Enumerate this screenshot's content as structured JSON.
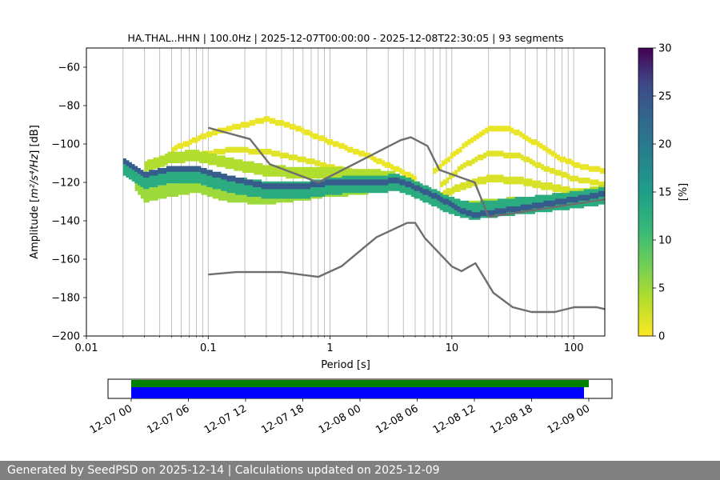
{
  "chart_data": [
    {
      "type": "heatmap",
      "title": "HA.THAL..HHN | 100.0Hz | 2025-12-07T00:00:00 - 2025-12-08T22:30:05 | 93 segments",
      "xlabel": "Period [s]",
      "ylabel_main": "Amplitude [",
      "ylabel_math": "m²/s⁴/Hz",
      "ylabel_end": "] [dB]",
      "xscale": "log",
      "xlim": [
        0.01,
        180
      ],
      "ylim": [
        -200,
        -50
      ],
      "x_ticks": [
        {
          "value": 0.01,
          "label": "0.01"
        },
        {
          "value": 0.1,
          "label": "0.1"
        },
        {
          "value": 1,
          "label": "1"
        },
        {
          "value": 10,
          "label": "10"
        },
        {
          "value": 100,
          "label": "100"
        }
      ],
      "y_ticks": [
        {
          "value": -60,
          "label": "−60"
        },
        {
          "value": -80,
          "label": "−80"
        },
        {
          "value": -100,
          "label": "−100"
        },
        {
          "value": -120,
          "label": "−120"
        },
        {
          "value": -140,
          "label": "−140"
        },
        {
          "value": -160,
          "label": "−160"
        },
        {
          "value": -180,
          "label": "−180"
        },
        {
          "value": -200,
          "label": "−200"
        }
      ],
      "grid": "x-major-and-minor",
      "colorbar": {
        "label": "[%]",
        "range": [
          0,
          30
        ],
        "ticks": [
          {
            "value": 0,
            "label": "0"
          },
          {
            "value": 5,
            "label": "5"
          },
          {
            "value": 10,
            "label": "10"
          },
          {
            "value": 15,
            "label": "15"
          },
          {
            "value": 20,
            "label": "20"
          },
          {
            "value": 25,
            "label": "25"
          },
          {
            "value": 30,
            "label": "30"
          }
        ],
        "colormap": "viridis_r"
      },
      "bands": [
        {
          "name": "mode",
          "pct": 24,
          "width_db": 3,
          "points": [
            [
              0.02,
              -108
            ],
            [
              0.03,
              -116
            ],
            [
              0.05,
              -113
            ],
            [
              0.08,
              -113
            ],
            [
              0.15,
              -118
            ],
            [
              0.3,
              -122
            ],
            [
              0.6,
              -122
            ],
            [
              1,
              -120
            ],
            [
              1.5,
              -120
            ],
            [
              2.5,
              -120
            ],
            [
              3.5,
              -119
            ],
            [
              4.5,
              -121
            ],
            [
              6,
              -125
            ],
            [
              9,
              -130
            ],
            [
              12,
              -135
            ],
            [
              15,
              -137
            ],
            [
              20,
              -136
            ],
            [
              40,
              -133
            ],
            [
              80,
              -130
            ],
            [
              180,
              -126
            ]
          ]
        },
        {
          "name": "core-band",
          "pct": 13,
          "width_db": 9,
          "points": [
            [
              0.02,
              -112
            ],
            [
              0.03,
              -119
            ],
            [
              0.05,
              -116
            ],
            [
              0.08,
              -116
            ],
            [
              0.15,
              -121
            ],
            [
              0.3,
              -124
            ],
            [
              0.6,
              -124
            ],
            [
              1,
              -122
            ],
            [
              1.5,
              -121
            ],
            [
              2.5,
              -121
            ],
            [
              3.5,
              -120
            ],
            [
              4.5,
              -122
            ],
            [
              6,
              -126
            ],
            [
              9,
              -131
            ],
            [
              12,
              -134
            ],
            [
              15,
              -135
            ],
            [
              20,
              -134
            ],
            [
              40,
              -132
            ],
            [
              80,
              -130
            ],
            [
              180,
              -127
            ]
          ]
        },
        {
          "name": "lower-spread",
          "pct": 5,
          "width_db": 7,
          "points": [
            [
              0.025,
              -120
            ],
            [
              0.03,
              -127
            ],
            [
              0.05,
              -124
            ],
            [
              0.08,
              -122
            ],
            [
              0.15,
              -127
            ],
            [
              0.3,
              -128
            ],
            [
              0.6,
              -126
            ],
            [
              1,
              -124
            ],
            [
              2,
              -123
            ]
          ]
        },
        {
          "name": "upper-spread",
          "pct": 4,
          "width_db": 6,
          "points": [
            [
              0.03,
              -112
            ],
            [
              0.05,
              -107
            ],
            [
              0.08,
              -106
            ],
            [
              0.15,
              -110
            ],
            [
              0.3,
              -114
            ],
            [
              0.6,
              -115
            ],
            [
              1,
              -115
            ],
            [
              2,
              -116
            ],
            [
              3.5,
              -117
            ]
          ]
        },
        {
          "name": "upper-hump",
          "pct": 1,
          "width_db": 3,
          "points": [
            [
              0.05,
              -103
            ],
            [
              0.1,
              -95
            ],
            [
              0.15,
              -92
            ],
            [
              0.3,
              -87
            ],
            [
              0.5,
              -91
            ],
            [
              1,
              -99
            ],
            [
              2,
              -106
            ],
            [
              3,
              -111
            ],
            [
              5,
              -118
            ]
          ]
        },
        {
          "name": "hump-2",
          "pct": 1.5,
          "width_db": 3,
          "points": [
            [
              0.08,
              -106
            ],
            [
              0.15,
              -103
            ],
            [
              0.3,
              -104
            ],
            [
              0.6,
              -108
            ],
            [
              1,
              -112
            ],
            [
              2,
              -116
            ],
            [
              3,
              -118
            ]
          ]
        },
        {
          "name": "hf-hump-1",
          "pct": 1,
          "width_db": 3,
          "points": [
            [
              7,
              -115
            ],
            [
              12,
              -102
            ],
            [
              20,
              -92
            ],
            [
              30,
              -92
            ],
            [
              50,
              -100
            ],
            [
              80,
              -108
            ],
            [
              120,
              -112
            ],
            [
              180,
              -114
            ]
          ]
        },
        {
          "name": "hf-hump-2",
          "pct": 1.5,
          "width_db": 3,
          "points": [
            [
              8,
              -122
            ],
            [
              12,
              -112
            ],
            [
              20,
              -105
            ],
            [
              35,
              -106
            ],
            [
              60,
              -113
            ],
            [
              100,
              -118
            ],
            [
              180,
              -121
            ]
          ]
        },
        {
          "name": "hf-hump-3",
          "pct": 2,
          "width_db": 4,
          "points": [
            [
              8,
              -127
            ],
            [
              12,
              -122
            ],
            [
              20,
              -118
            ],
            [
              35,
              -119
            ],
            [
              60,
              -122
            ],
            [
              100,
              -125
            ],
            [
              180,
              -124
            ]
          ]
        },
        {
          "name": "hf-lower",
          "pct": 4,
          "width_db": 5,
          "points": [
            [
              8,
              -130
            ],
            [
              12,
              -133
            ],
            [
              20,
              -131
            ],
            [
              40,
              -130
            ],
            [
              80,
              -128
            ],
            [
              180,
              -124
            ]
          ]
        }
      ],
      "noise_models": [
        {
          "name": "NHNM",
          "points": [
            [
              0.1,
              -91.5
            ],
            [
              0.22,
              -97.4
            ],
            [
              0.32,
              -110.5
            ],
            [
              0.8,
              -120
            ],
            [
              3.8,
              -98
            ],
            [
              4.6,
              -96.5
            ],
            [
              6.3,
              -101
            ],
            [
              7.9,
              -113.5
            ],
            [
              15.4,
              -120
            ],
            [
              20,
              -138
            ]
          ]
        },
        {
          "name": "HNM-longperiod",
          "points": [
            [
              20,
              -138
            ],
            [
              354,
              -126
            ]
          ]
        },
        {
          "name": "NLNM",
          "points": [
            [
              0.1,
              -168
            ],
            [
              0.17,
              -166.7
            ],
            [
              0.4,
              -166.7
            ],
            [
              0.8,
              -169.2
            ],
            [
              1.24,
              -163.7
            ],
            [
              2.4,
              -148.6
            ],
            [
              4.3,
              -141.1
            ],
            [
              5,
              -141.1
            ],
            [
              6,
              -149
            ],
            [
              10,
              -163.8
            ],
            [
              12,
              -166.2
            ],
            [
              15.6,
              -162.1
            ],
            [
              21.9,
              -177.5
            ],
            [
              31.6,
              -185
            ],
            [
              45,
              -187.5
            ],
            [
              70,
              -187.5
            ],
            [
              101,
              -185
            ],
            [
              154,
              -185
            ],
            [
              180,
              -186
            ]
          ]
        }
      ]
    },
    {
      "type": "timeline",
      "x_range": [
        "2025-12-07 00:00",
        "2025-12-09 00:00"
      ],
      "x_ticks": [
        "12-07 00",
        "12-07 06",
        "12-07 12",
        "12-07 18",
        "12-08 00",
        "12-08 06",
        "12-08 12",
        "12-08 18",
        "12-09 00"
      ],
      "series": [
        {
          "name": "",
          "color": "#008000",
          "start": "2025-12-07 00:00",
          "end": "2025-12-09 00:00"
        },
        {
          "name": "",
          "color": "#0000ff",
          "start": "2025-12-07 00:00",
          "end": "2025-12-08 23:30"
        }
      ]
    }
  ],
  "footer": {
    "text": "Generated by SeedPSD on 2025-12-14 | Calculations updated on 2025-12-09"
  }
}
